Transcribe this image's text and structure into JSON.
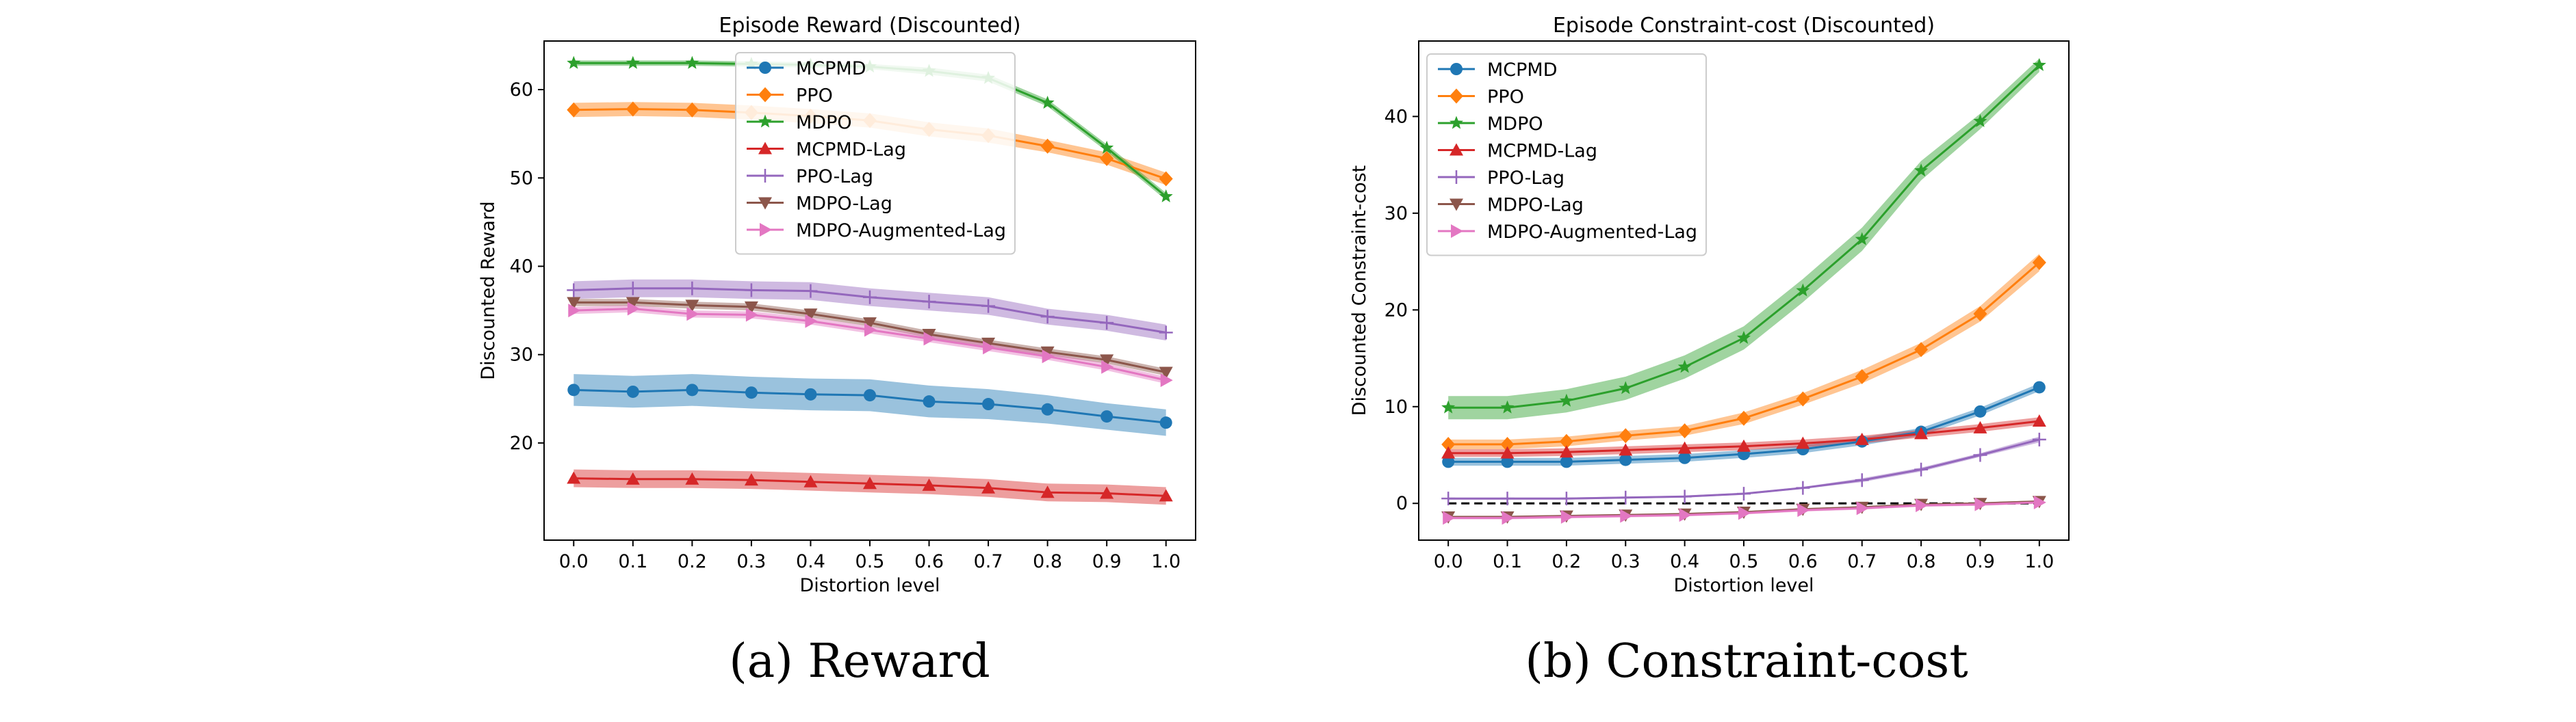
{
  "figure": {
    "caption_a": "(a) Reward",
    "caption_b": "(b) Constraint-cost"
  },
  "chart_data": [
    {
      "type": "line",
      "title": "Episode Reward (Discounted)",
      "xlabel": "Distortion level",
      "ylabel": "Discounted Reward",
      "xlim": [
        -0.05,
        1.05
      ],
      "ylim": [
        9,
        65.5
      ],
      "xticks": [
        0.0,
        0.1,
        0.2,
        0.3,
        0.4,
        0.5,
        0.6,
        0.7,
        0.8,
        0.9,
        1.0
      ],
      "xticklabels": [
        "0.0",
        "0.1",
        "0.2",
        "0.3",
        "0.4",
        "0.5",
        "0.6",
        "0.7",
        "0.8",
        "0.9",
        "1.0"
      ],
      "yticks": [
        20,
        30,
        40,
        50,
        60
      ],
      "yticklabels": [
        "20",
        "30",
        "40",
        "50",
        "60"
      ],
      "grid": false,
      "legend_position": "top-center",
      "x": [
        0.0,
        0.1,
        0.2,
        0.3,
        0.4,
        0.5,
        0.6,
        0.7,
        0.8,
        0.9,
        1.0
      ],
      "series": [
        {
          "name": "MCPMD",
          "color": "#1f77b4",
          "marker": "circle",
          "values": [
            26.0,
            25.8,
            26.0,
            25.7,
            25.5,
            25.4,
            24.7,
            24.4,
            23.8,
            23.0,
            22.3
          ],
          "band": [
            1.8,
            1.8,
            1.8,
            1.8,
            1.8,
            1.8,
            1.8,
            1.7,
            1.6,
            1.5,
            1.5
          ]
        },
        {
          "name": "PPO",
          "color": "#ff7f0e",
          "marker": "diamond",
          "values": [
            57.7,
            57.8,
            57.7,
            57.4,
            57.0,
            56.5,
            55.5,
            54.8,
            53.6,
            52.2,
            49.9
          ],
          "band": [
            0.8,
            0.8,
            0.8,
            0.8,
            0.8,
            0.8,
            0.8,
            0.8,
            0.7,
            0.7,
            0.7
          ]
        },
        {
          "name": "MDPO",
          "color": "#2ca02c",
          "marker": "star",
          "values": [
            63.0,
            63.0,
            63.0,
            62.9,
            62.8,
            62.6,
            62.1,
            61.3,
            58.5,
            53.4,
            47.9
          ],
          "band": [
            0.3,
            0.3,
            0.3,
            0.3,
            0.3,
            0.3,
            0.4,
            0.4,
            0.4,
            0.4,
            0.4
          ]
        },
        {
          "name": "MCPMD-Lag",
          "color": "#d62728",
          "marker": "triangle-up",
          "values": [
            16.0,
            15.9,
            15.9,
            15.8,
            15.6,
            15.4,
            15.2,
            14.9,
            14.4,
            14.3,
            14.0
          ],
          "band": [
            1.0,
            1.0,
            1.0,
            1.0,
            1.0,
            1.0,
            1.0,
            1.0,
            1.0,
            1.0,
            1.0
          ]
        },
        {
          "name": "PPO-Lag",
          "color": "#9467bd",
          "marker": "plus",
          "values": [
            37.3,
            37.5,
            37.5,
            37.3,
            37.2,
            36.5,
            36.0,
            35.5,
            34.3,
            33.6,
            32.5
          ],
          "band": [
            1.0,
            1.0,
            1.0,
            1.0,
            1.0,
            1.0,
            1.0,
            1.0,
            0.9,
            0.9,
            0.9
          ]
        },
        {
          "name": "MDPO-Lag",
          "color": "#8c564b",
          "marker": "triangle-down",
          "values": [
            35.9,
            35.9,
            35.6,
            35.4,
            34.6,
            33.6,
            32.3,
            31.3,
            30.3,
            29.4,
            28.0
          ],
          "band": [
            0.4,
            0.4,
            0.4,
            0.4,
            0.4,
            0.4,
            0.4,
            0.4,
            0.4,
            0.4,
            0.4
          ]
        },
        {
          "name": "MDPO-Augmented-Lag",
          "color": "#e377c2",
          "marker": "triangle-right",
          "values": [
            35.0,
            35.2,
            34.6,
            34.5,
            33.8,
            32.8,
            31.8,
            30.8,
            29.8,
            28.6,
            27.1
          ],
          "band": [
            0.4,
            0.4,
            0.4,
            0.4,
            0.4,
            0.4,
            0.4,
            0.4,
            0.4,
            0.4,
            0.4
          ]
        }
      ]
    },
    {
      "type": "line",
      "title": "Episode Constraint-cost (Discounted)",
      "xlabel": "Distortion level",
      "ylabel": "Discounted Constraint-cost",
      "xlim": [
        -0.05,
        1.05
      ],
      "ylim": [
        -3.8,
        47.8
      ],
      "xticks": [
        0.0,
        0.1,
        0.2,
        0.3,
        0.4,
        0.5,
        0.6,
        0.7,
        0.8,
        0.9,
        1.0
      ],
      "xticklabels": [
        "0.0",
        "0.1",
        "0.2",
        "0.3",
        "0.4",
        "0.5",
        "0.6",
        "0.7",
        "0.8",
        "0.9",
        "1.0"
      ],
      "yticks": [
        0,
        10,
        20,
        30,
        40
      ],
      "yticklabels": [
        "0",
        "10",
        "20",
        "30",
        "40"
      ],
      "grid": false,
      "legend_position": "top-left",
      "reference_line": {
        "y": 0,
        "style": "dashed",
        "color": "#000000"
      },
      "x": [
        0.0,
        0.1,
        0.2,
        0.3,
        0.4,
        0.5,
        0.6,
        0.7,
        0.8,
        0.9,
        1.0
      ],
      "series": [
        {
          "name": "MCPMD",
          "color": "#1f77b4",
          "marker": "circle",
          "values": [
            4.3,
            4.3,
            4.3,
            4.5,
            4.7,
            5.1,
            5.6,
            6.4,
            7.4,
            9.5,
            12.0
          ],
          "band": [
            0.4,
            0.4,
            0.4,
            0.4,
            0.4,
            0.4,
            0.4,
            0.4,
            0.4,
            0.4,
            0.4
          ]
        },
        {
          "name": "PPO",
          "color": "#ff7f0e",
          "marker": "diamond",
          "values": [
            6.1,
            6.1,
            6.4,
            7.0,
            7.5,
            8.8,
            10.8,
            13.1,
            15.9,
            19.6,
            24.9
          ],
          "band": [
            0.5,
            0.5,
            0.5,
            0.5,
            0.5,
            0.6,
            0.6,
            0.7,
            0.7,
            0.8,
            0.9
          ]
        },
        {
          "name": "MDPO",
          "color": "#2ca02c",
          "marker": "star",
          "values": [
            9.9,
            9.9,
            10.6,
            11.9,
            14.1,
            17.1,
            22.0,
            27.3,
            34.4,
            39.5,
            45.3
          ],
          "band": [
            1.2,
            1.2,
            1.2,
            1.2,
            1.2,
            1.2,
            1.2,
            1.2,
            1.0,
            0.8,
            0.7
          ]
        },
        {
          "name": "MCPMD-Lag",
          "color": "#d62728",
          "marker": "triangle-up",
          "values": [
            5.2,
            5.2,
            5.3,
            5.5,
            5.7,
            5.9,
            6.2,
            6.6,
            7.2,
            7.8,
            8.5
          ],
          "band": [
            0.4,
            0.4,
            0.4,
            0.4,
            0.4,
            0.4,
            0.4,
            0.4,
            0.4,
            0.4,
            0.4
          ]
        },
        {
          "name": "PPO-Lag",
          "color": "#9467bd",
          "marker": "plus",
          "values": [
            0.5,
            0.5,
            0.5,
            0.6,
            0.7,
            1.0,
            1.6,
            2.4,
            3.5,
            5.0,
            6.6
          ],
          "band": [
            0.1,
            0.1,
            0.1,
            0.1,
            0.1,
            0.1,
            0.1,
            0.2,
            0.2,
            0.2,
            0.3
          ]
        },
        {
          "name": "MDPO-Lag",
          "color": "#8c564b",
          "marker": "triangle-down",
          "values": [
            -1.4,
            -1.4,
            -1.3,
            -1.2,
            -1.1,
            -0.9,
            -0.6,
            -0.4,
            -0.1,
            0.0,
            0.2
          ],
          "band": [
            0.1,
            0.1,
            0.1,
            0.1,
            0.1,
            0.1,
            0.1,
            0.1,
            0.1,
            0.1,
            0.1
          ]
        },
        {
          "name": "MDPO-Augmented-Lag",
          "color": "#e377c2",
          "marker": "triangle-right",
          "values": [
            -1.5,
            -1.5,
            -1.4,
            -1.3,
            -1.2,
            -1.0,
            -0.7,
            -0.5,
            -0.2,
            -0.1,
            0.1
          ],
          "band": [
            0.15,
            0.15,
            0.15,
            0.15,
            0.15,
            0.15,
            0.15,
            0.15,
            0.15,
            0.15,
            0.15
          ]
        }
      ]
    }
  ]
}
